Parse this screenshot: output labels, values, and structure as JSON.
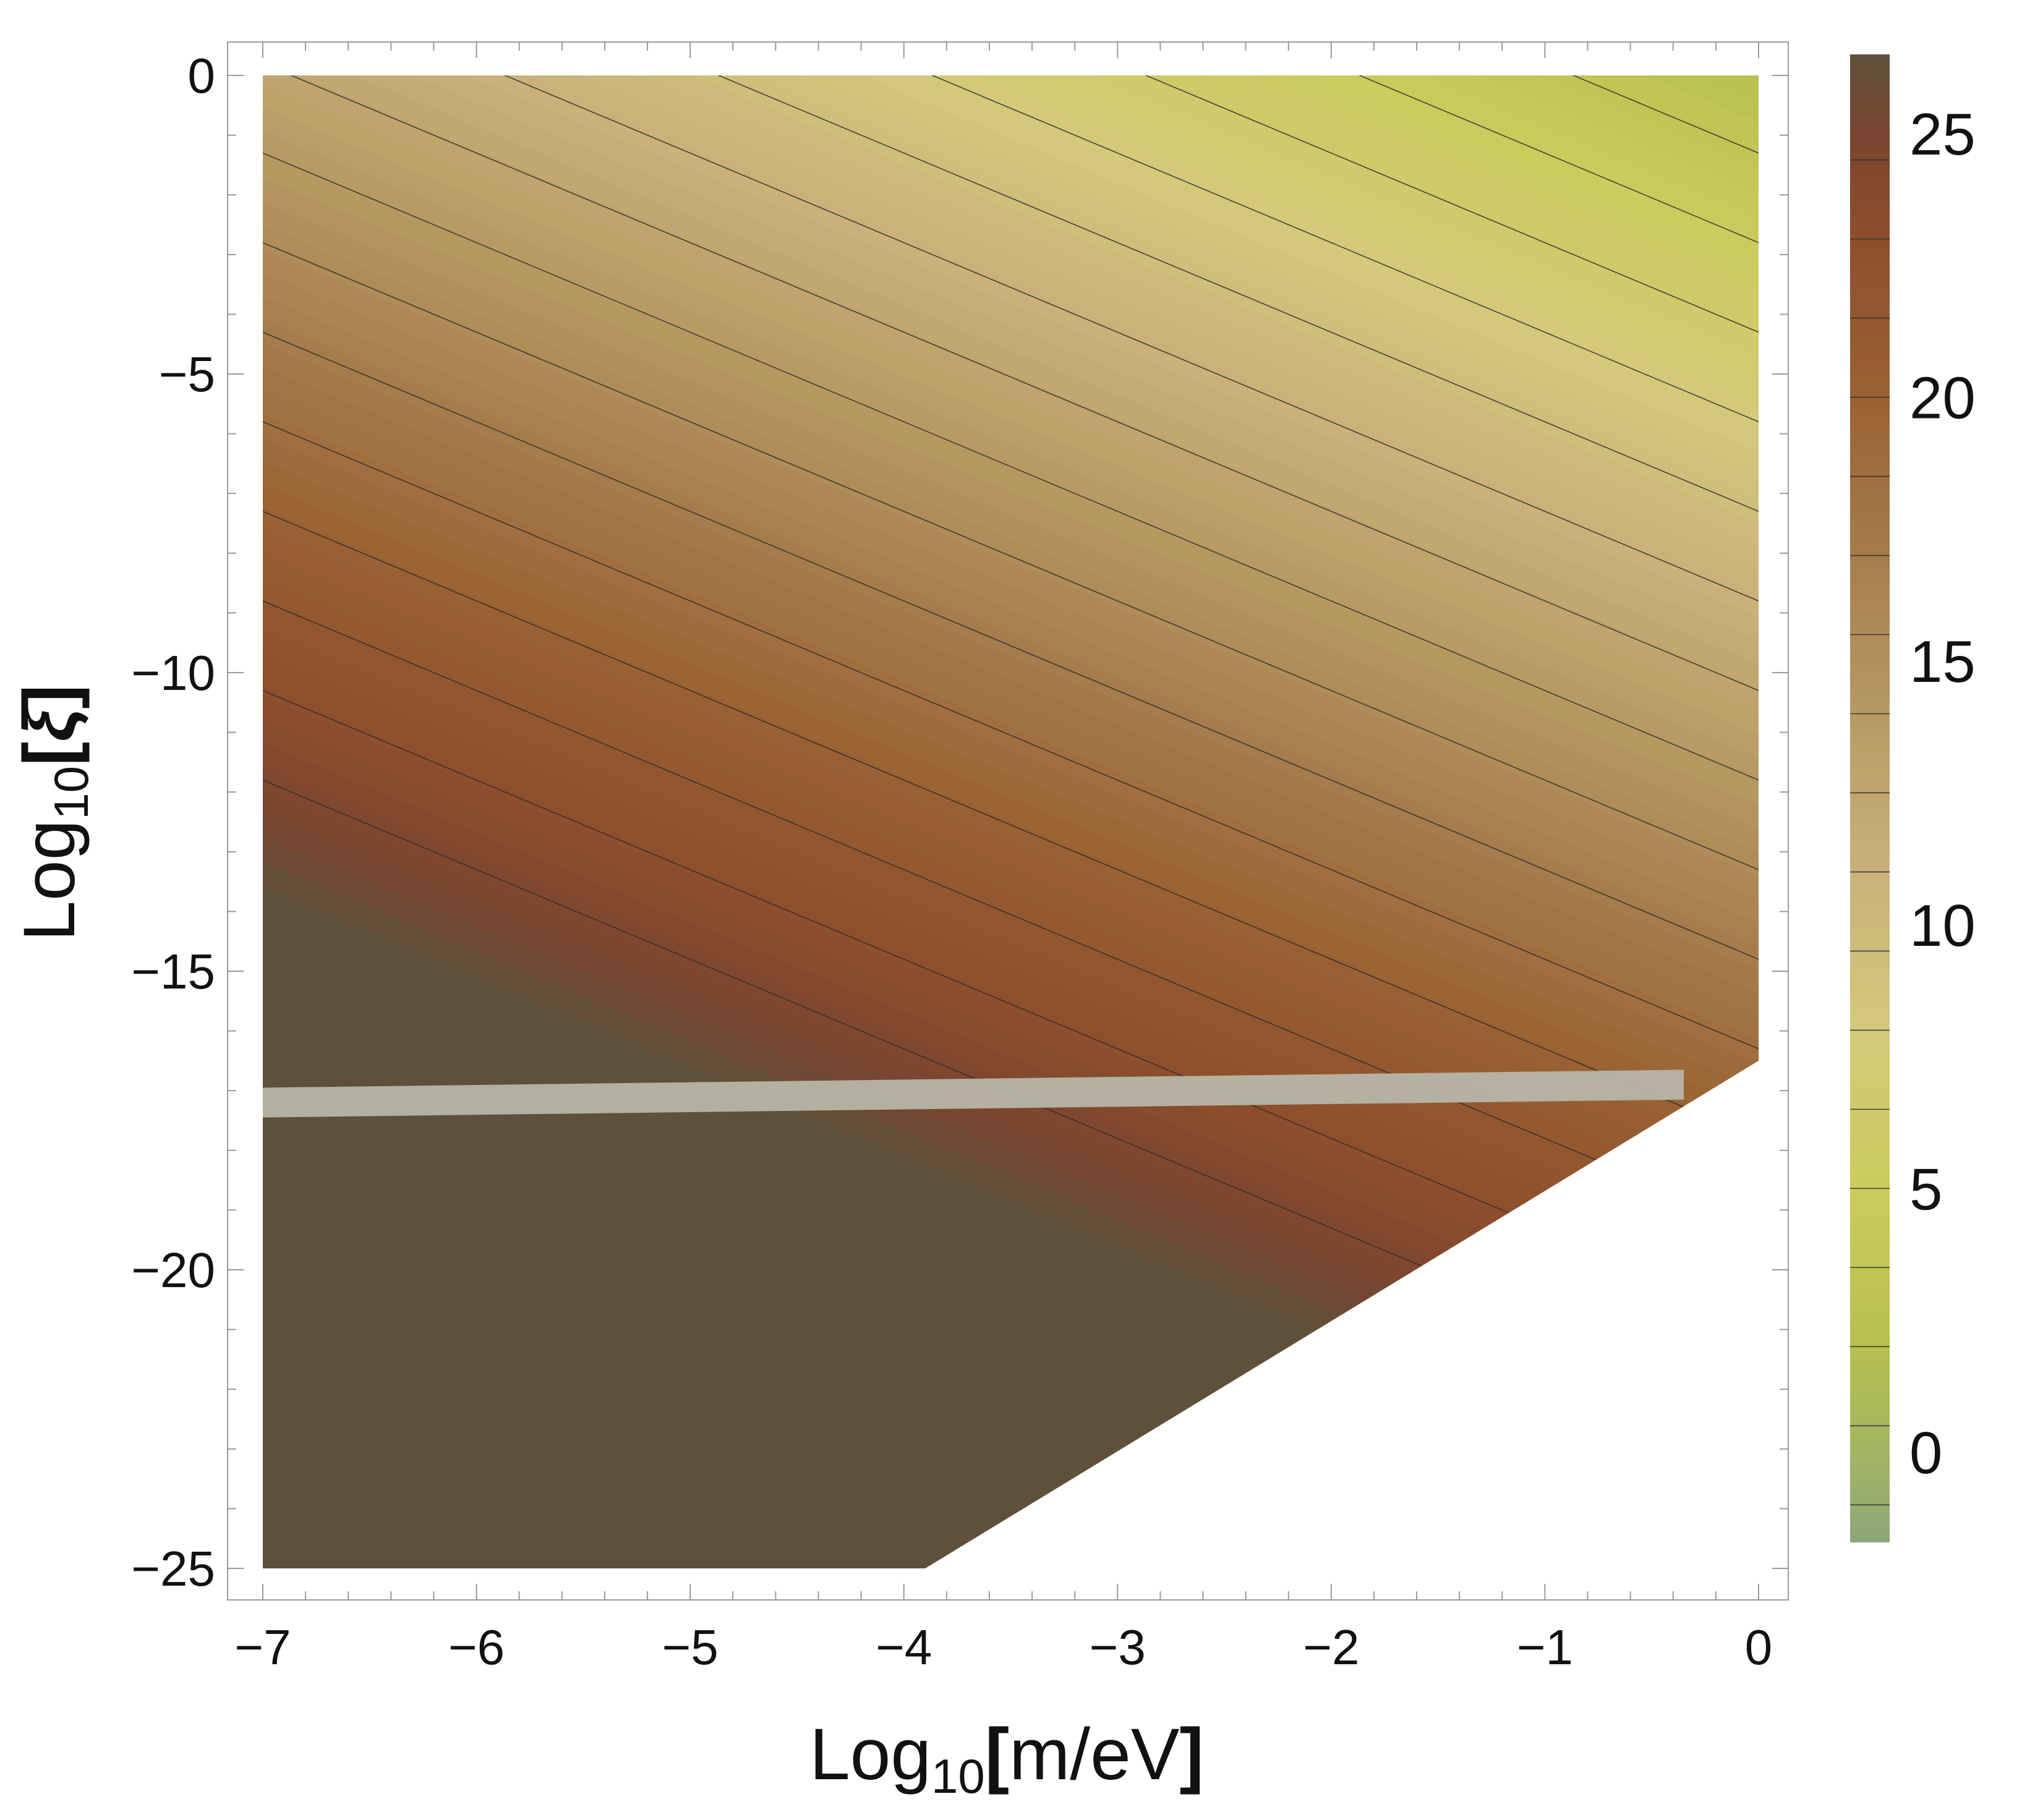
{
  "chart_data": {
    "type": "contour",
    "title": "",
    "xlabel": {
      "prefix": "Log",
      "sub": "10",
      "bracket_open": "[",
      "body": "m/eV",
      "bracket_close": "]"
    },
    "ylabel": {
      "prefix": "Log",
      "sub": "10",
      "bracket_open": "[",
      "body": "ξ",
      "bracket_close": "]"
    },
    "xlim": [
      -7,
      0
    ],
    "ylim": [
      -25,
      0
    ],
    "xticks": [
      -7,
      -6,
      -5,
      -4,
      -3,
      -2,
      -1,
      0
    ],
    "yticks": [
      0,
      -5,
      -10,
      -15,
      -20,
      -25
    ],
    "xtick_labels": [
      "−7",
      "−6",
      "−5",
      "−4",
      "−3",
      "−2",
      "−1",
      "0"
    ],
    "ytick_labels": [
      "0",
      "−5",
      "−10",
      "−15",
      "−20",
      "−25"
    ],
    "field": {
      "form": "a*x + b*y + c",
      "a": -1.5,
      "b": -1.0,
      "c": 2.2
    },
    "contour_levels": [
      -1,
      0.5,
      2,
      3.5,
      5,
      6.5,
      8,
      9.5,
      11,
      12.5,
      14,
      15.5,
      17,
      18.5,
      20,
      21.5,
      23,
      24.5
    ],
    "colorbar": {
      "min": -1.7,
      "max": 26.5,
      "ticks": [
        0,
        5,
        10,
        15,
        20,
        25
      ],
      "tick_labels": [
        "0",
        "5",
        "10",
        "15",
        "20",
        "25"
      ],
      "colormap": [
        [
          -1.7,
          "#8da67a"
        ],
        [
          0,
          "#a3b562"
        ],
        [
          2,
          "#b7bf4e"
        ],
        [
          5,
          "#cbcb5c"
        ],
        [
          8,
          "#d3c97a"
        ],
        [
          11,
          "#c9b27a"
        ],
        [
          14,
          "#b79a63"
        ],
        [
          17,
          "#a67c4c"
        ],
        [
          20,
          "#9a6233"
        ],
        [
          23,
          "#8e4e2c"
        ],
        [
          25,
          "#7a4530"
        ],
        [
          26.5,
          "#5e503a"
        ]
      ]
    },
    "excluded_region": {
      "color": "#ffffff",
      "boundary": [
        [
          -3.9,
          -25
        ],
        [
          0,
          -16.5
        ]
      ]
    },
    "band": {
      "color": "#b7b5a6",
      "from": [
        -7,
        -17.2
      ],
      "to": [
        -0.35,
        -16.9
      ],
      "half_width": 0.25
    }
  }
}
